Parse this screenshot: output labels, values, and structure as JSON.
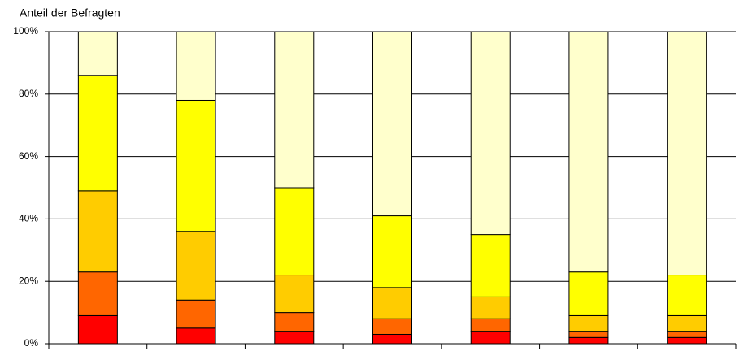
{
  "chart_data": {
    "type": "stacked_bar",
    "y_label": "Anteil der Befragten",
    "categories": [
      null,
      null,
      null,
      null,
      null,
      null,
      null
    ],
    "series": [
      {
        "color": "#ff0000",
        "values": [
          9,
          5,
          4,
          3,
          4,
          2,
          2
        ]
      },
      {
        "color": "#ff6600",
        "values": [
          14,
          9,
          6,
          5,
          4,
          2,
          2
        ]
      },
      {
        "color": "#ffcc00",
        "values": [
          26,
          22,
          12,
          10,
          7,
          5,
          5
        ]
      },
      {
        "color": "#ffff00",
        "values": [
          37,
          42,
          28,
          23,
          20,
          14,
          13
        ]
      },
      {
        "color": "#ffffcc",
        "values": [
          14,
          22,
          50,
          59,
          65,
          77,
          78
        ]
      }
    ],
    "ylim": [
      0,
      100
    ],
    "yticks": [
      {
        "value": 0,
        "label": "0%"
      },
      {
        "value": 20,
        "label": "20%"
      },
      {
        "value": 40,
        "label": "40%"
      },
      {
        "value": 60,
        "label": "60%"
      },
      {
        "value": 80,
        "label": "80%"
      },
      {
        "value": 100,
        "label": "100%"
      }
    ],
    "grid": true
  }
}
